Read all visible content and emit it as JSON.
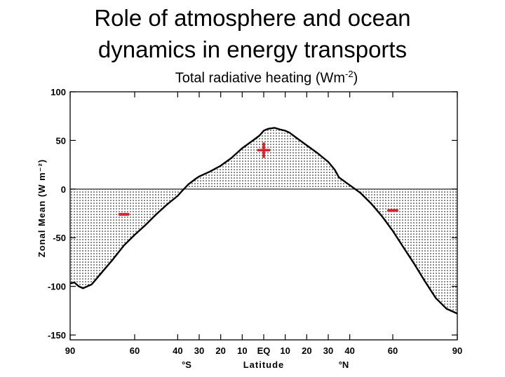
{
  "slide": {
    "title_line1": "Role of atmosphere and ocean",
    "title_line2": "dynamics in energy transports",
    "subtitle_prefix": "Total radiative heating (Wm",
    "subtitle_sup": "-2",
    "subtitle_suffix": ")"
  },
  "chart_data": {
    "type": "area",
    "title": "Total radiative heating (Wm-2)",
    "xlabel": "Latitude",
    "ylabel": "Zonal Mean  (W m⁻²)",
    "xlim": [
      -90,
      90
    ],
    "ylim": [
      -155,
      100
    ],
    "yticks": [
      100,
      50,
      0,
      -50,
      -100,
      -150
    ],
    "xticks": [
      -90,
      -60,
      -40,
      -30,
      -20,
      -10,
      0,
      10,
      20,
      30,
      40,
      60,
      90
    ],
    "xtick_labels": [
      "90",
      "60",
      "40",
      "30",
      "20",
      "10",
      "EQ",
      "10",
      "20",
      "30",
      "40",
      "60",
      "90"
    ],
    "hemisphere_labels": {
      "south": "°S",
      "north": "°N"
    },
    "grid": false,
    "fill": "dotted between curve and zero line",
    "series": [
      {
        "x": [
          -90,
          -88,
          -86,
          -84,
          -80,
          -75,
          -70,
          -65,
          -60,
          -55,
          -50,
          -45,
          -40,
          -38,
          -35,
          -32,
          -30,
          -25,
          -20,
          -15,
          -10,
          -5,
          -2,
          0,
          2,
          5,
          8,
          10,
          12,
          15,
          20,
          25,
          30,
          33,
          35,
          40,
          45,
          50,
          55,
          60,
          65,
          70,
          75,
          80,
          85,
          90
        ],
        "y": [
          -97,
          -96,
          -100,
          -102,
          -98,
          -85,
          -72,
          -58,
          -47,
          -37,
          -26,
          -16,
          -7,
          -2,
          5,
          10,
          13,
          18,
          24,
          32,
          42,
          50,
          55,
          60,
          62,
          63,
          61,
          60,
          58,
          53,
          45,
          37,
          28,
          20,
          12,
          4,
          -4,
          -15,
          -28,
          -43,
          -60,
          -77,
          -95,
          -112,
          -123,
          -128
        ]
      }
    ],
    "annotations": [
      {
        "text": "+",
        "x": 0,
        "y": 40,
        "color": "#e0202a"
      },
      {
        "text": "–",
        "x": -65,
        "y": -26,
        "color": "#e0202a"
      },
      {
        "text": "–",
        "x": 60,
        "y": -22,
        "color": "#e0202a"
      }
    ]
  }
}
